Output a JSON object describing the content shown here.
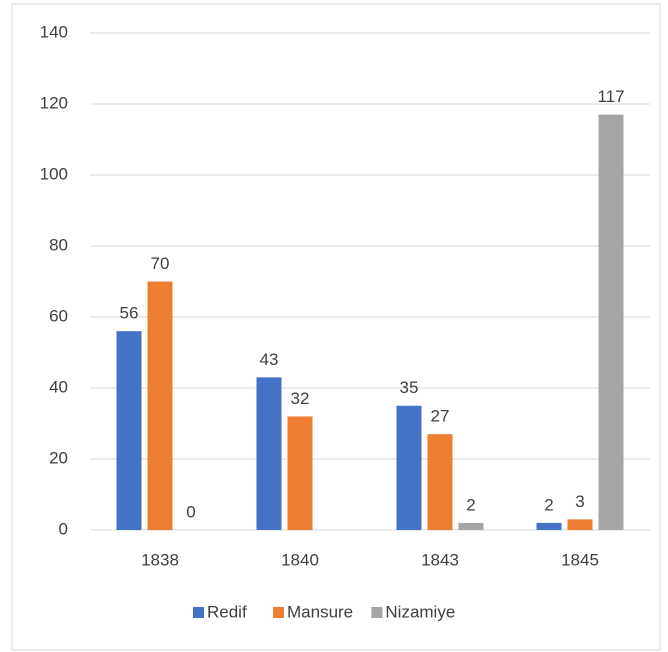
{
  "chart_data": {
    "type": "bar",
    "categories": [
      "1838",
      "1840",
      "1843",
      "1845"
    ],
    "series": [
      {
        "name": "Redif",
        "color": "#4472c4",
        "values": [
          56,
          43,
          35,
          2
        ]
      },
      {
        "name": "Mansure",
        "color": "#ed7d31",
        "values": [
          70,
          32,
          27,
          3
        ]
      },
      {
        "name": "Nizamiye",
        "color": "#a5a5a5",
        "values": [
          0,
          null,
          2,
          117
        ]
      }
    ],
    "ylim": [
      0,
      140
    ],
    "yticks": [
      0,
      20,
      40,
      60,
      80,
      100,
      120,
      140
    ],
    "grid": true,
    "legend": "bottom"
  }
}
